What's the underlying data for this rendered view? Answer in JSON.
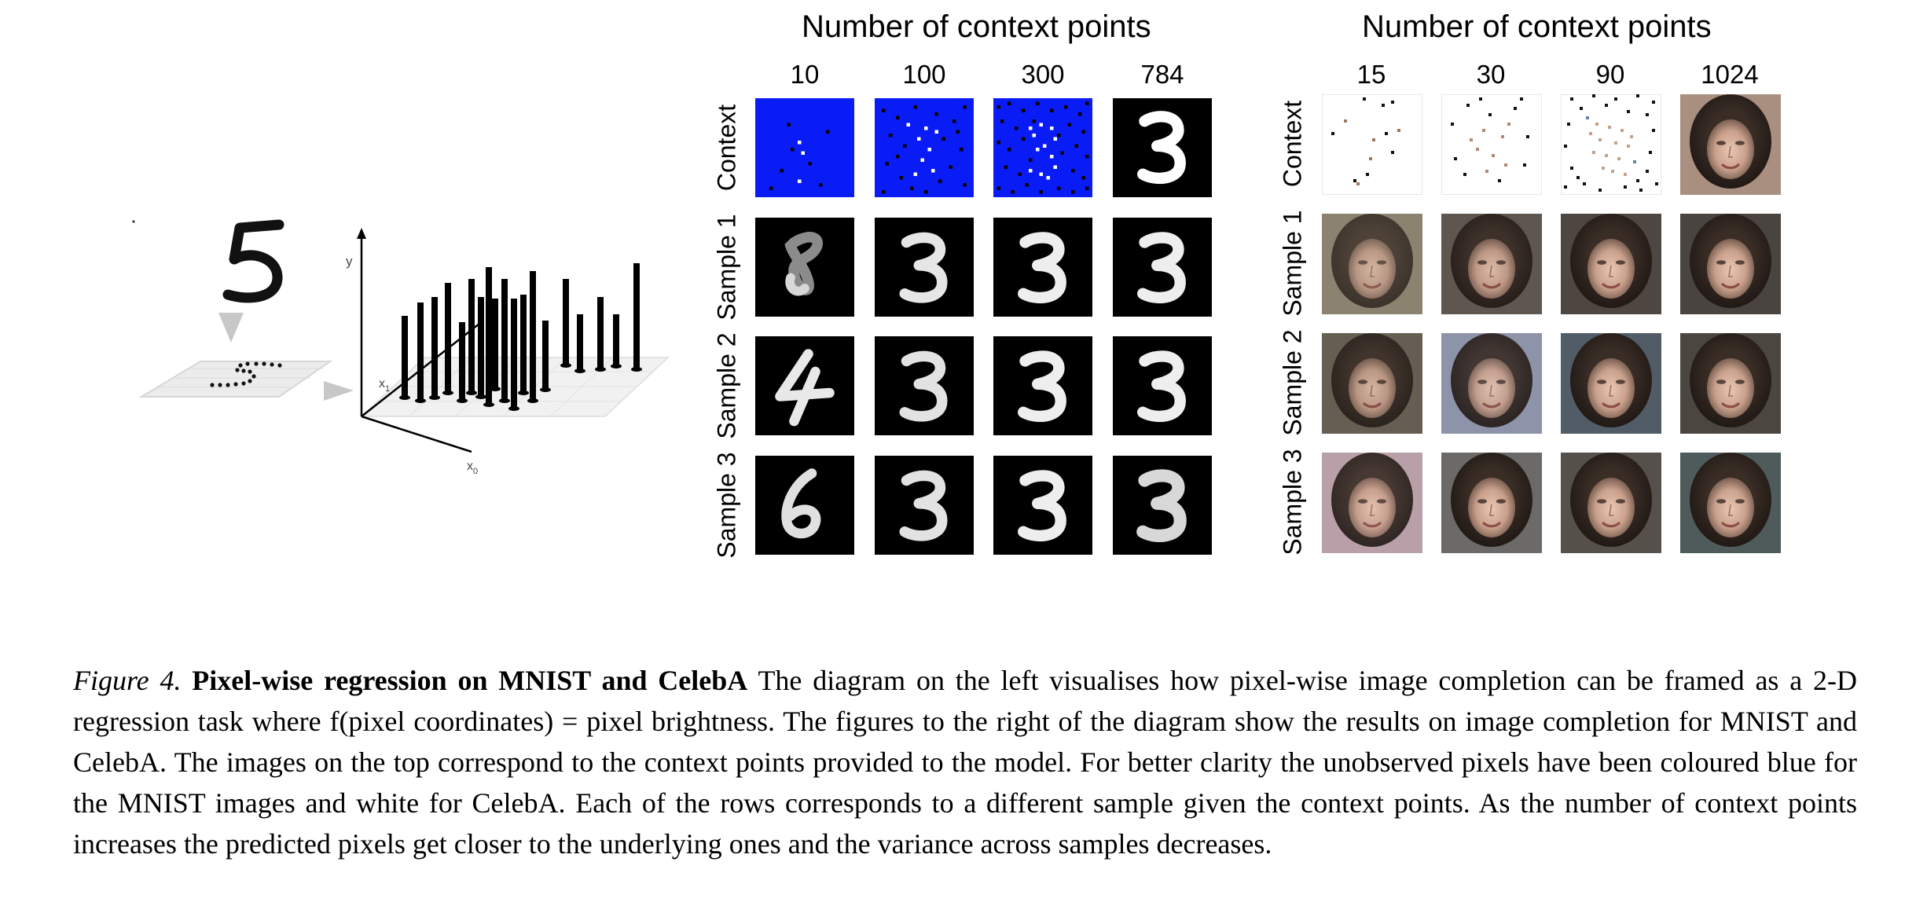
{
  "diagram": {
    "axis_y": "y",
    "axis_x1": "x",
    "axis_x1_sub": "1",
    "axis_x0": "x",
    "axis_x0_sub": "0"
  },
  "mnist": {
    "title": "Number of context points",
    "columns": [
      "10",
      "100",
      "300",
      "784"
    ],
    "rows": [
      "Context",
      "Sample 1",
      "Sample 2",
      "Sample 3"
    ],
    "unobserved_color": "#0a1cf5",
    "grid": [
      [
        "sparse-context-10",
        "sparse-context-100",
        "sparse-context-300",
        "digit-3"
      ],
      [
        "digit-8",
        "digit-3",
        "digit-3",
        "digit-3"
      ],
      [
        "digit-4",
        "digit-3",
        "digit-3",
        "digit-3"
      ],
      [
        "digit-6",
        "digit-3",
        "digit-3",
        "digit-3"
      ]
    ]
  },
  "celeba": {
    "title": "Number of context points",
    "columns": [
      "15",
      "30",
      "90",
      "1024"
    ],
    "rows": [
      "Context",
      "Sample 1",
      "Sample 2",
      "Sample 3"
    ],
    "unobserved_color": "#ffffff"
  },
  "caption": {
    "lead": "Figure 4.",
    "bold": "Pixel-wise regression on MNIST and CelebA",
    "text": "The diagram on the left visualises how pixel-wise image completion can be framed as a 2-D regression task where f(pixel coordinates) = pixel brightness. The figures to the right of the diagram show the results on image completion for MNIST and CelebA. The images on the top correspond to the context points provided to the model. For better clarity the unobserved pixels have been coloured blue for the MNIST images and white for CelebA. Each of the rows corresponds to a different sample given the context points. As the number of context points increases the predicted pixels get closer to the underlying ones and the variance across samples decreases."
  }
}
